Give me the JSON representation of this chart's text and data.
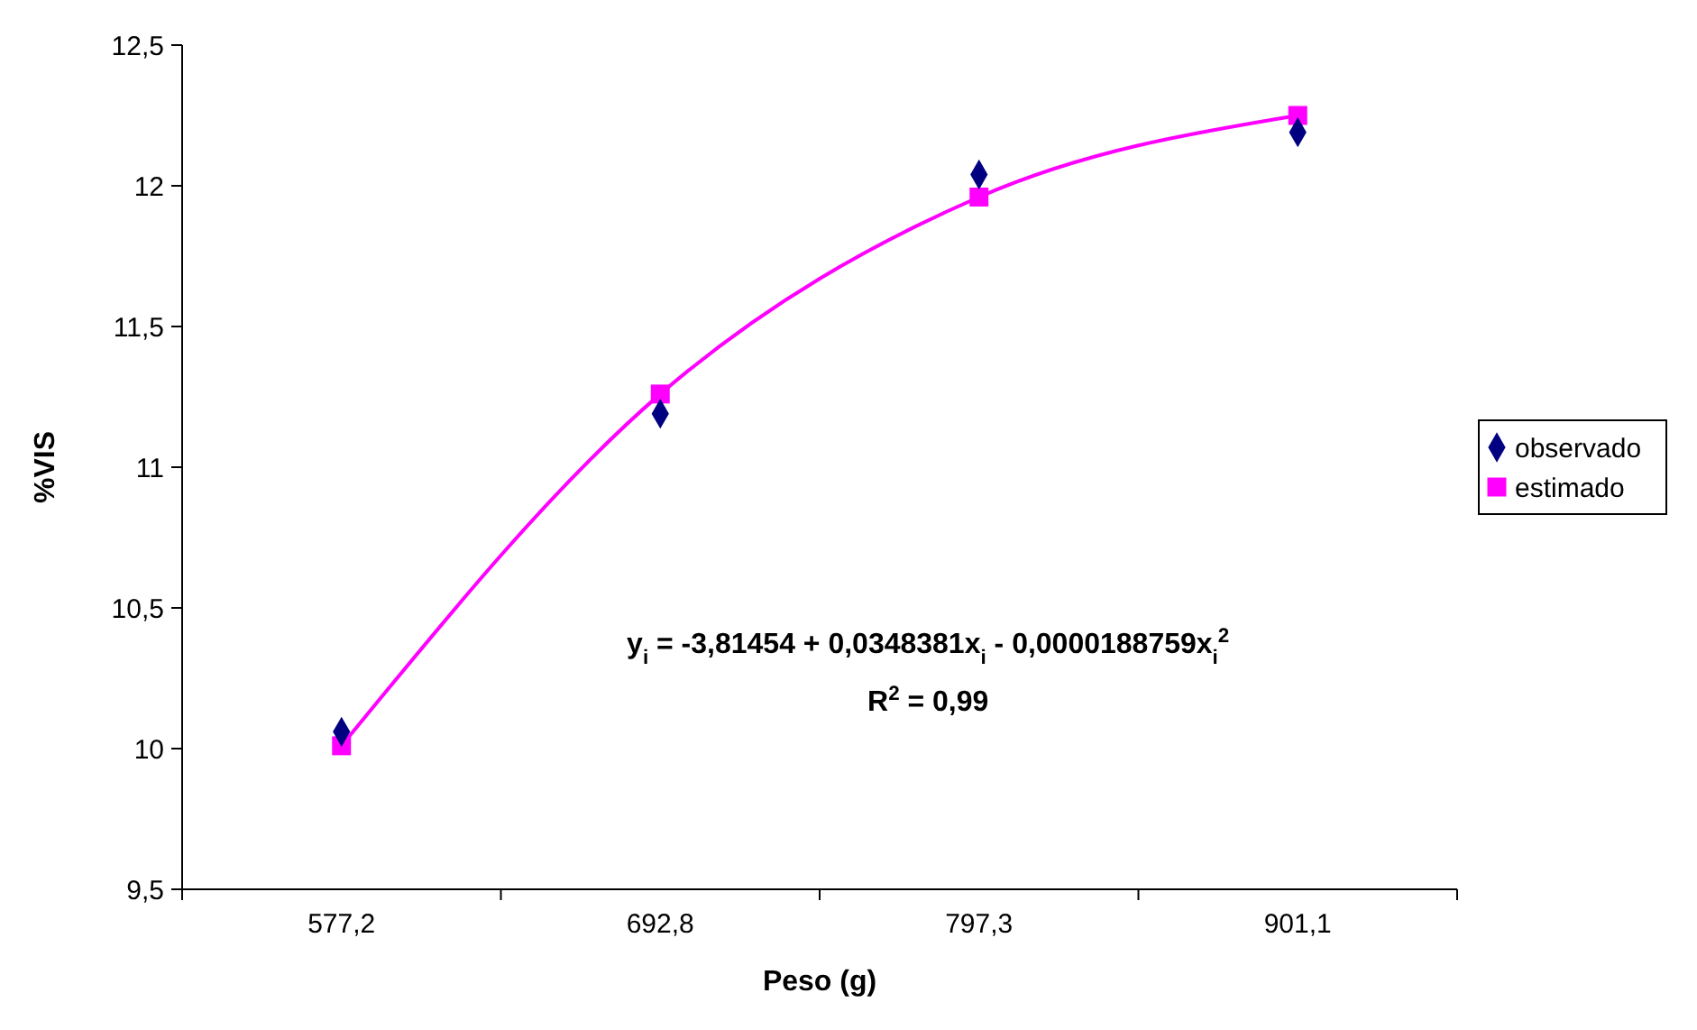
{
  "chart_data": {
    "type": "scatter",
    "xlabel": "Peso (g)",
    "ylabel": "%VIS",
    "categories": [
      "577,2",
      "692,8",
      "797,3",
      "901,1"
    ],
    "series": [
      {
        "name": "observado",
        "type": "scatter",
        "marker": "diamond",
        "color": "#000080",
        "values": [
          10.06,
          11.19,
          12.04,
          12.19
        ]
      },
      {
        "name": "estimado",
        "type": "line",
        "marker": "square",
        "color": "#ff00ff",
        "values": [
          10.01,
          11.26,
          11.96,
          12.25
        ]
      }
    ],
    "ylim": [
      9.5,
      12.5
    ],
    "yticks": [
      {
        "value": 9.5,
        "label": "9,5"
      },
      10,
      {
        "value": 10.5,
        "label": "10,5"
      },
      11,
      {
        "value": 11.5,
        "label": "11,5"
      },
      12,
      {
        "value": 12.5,
        "label": "12,5"
      }
    ],
    "grid": false,
    "legend": "right",
    "annotations": [
      "y$_{i}$ = -3,81454 + 0,0348381x$_{i}$ - 0,0000188759x$_{i}$$^{2}$",
      "R$^{2}$ = 0,99"
    ]
  }
}
